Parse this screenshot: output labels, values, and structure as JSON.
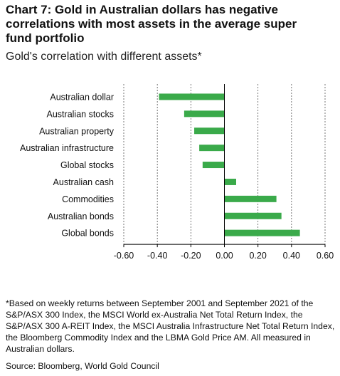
{
  "header": {
    "title": "Chart 7: Gold in Australian dollars has negative\ncorrelations with most assets in the average super\nfund portfolio",
    "subtitle": "Gold's correlation with different assets*"
  },
  "chart_data": {
    "type": "bar",
    "orientation": "horizontal",
    "categories": [
      "Australian dollar",
      "Australian stocks",
      "Australian property",
      "Australian infrastructure",
      "Global stocks",
      "Australian cash",
      "Commodities",
      "Australian bonds",
      "Global bonds"
    ],
    "values": [
      -0.39,
      -0.24,
      -0.18,
      -0.15,
      -0.13,
      0.07,
      0.31,
      0.34,
      0.45
    ],
    "tick_labels": [
      "-0.60",
      "-0.40",
      "-0.20",
      "0.00",
      "0.20",
      "0.40",
      "0.60"
    ],
    "ticks": [
      -0.6,
      -0.4,
      -0.2,
      0.0,
      0.2,
      0.4,
      0.6
    ],
    "xlim": [
      -0.6,
      0.6
    ],
    "grid": "vertical dashed",
    "colors": {
      "bar": "#3aaa4a",
      "grid": "#555555",
      "axis": "#000000"
    }
  },
  "footnote": "*Based on weekly returns between September 2001 and September 2021 of the S&P/ASX 300 Index, the MSCI World ex-Australia Net Total Return Index, the S&P/ASX 300 A-REIT Index, the MSCI Australia Infrastructure Net Total Return Index, the Bloomberg Commodity Index and the LBMA Gold Price AM. All measured in Australian dollars.",
  "source": "Source: Bloomberg, World Gold Council"
}
